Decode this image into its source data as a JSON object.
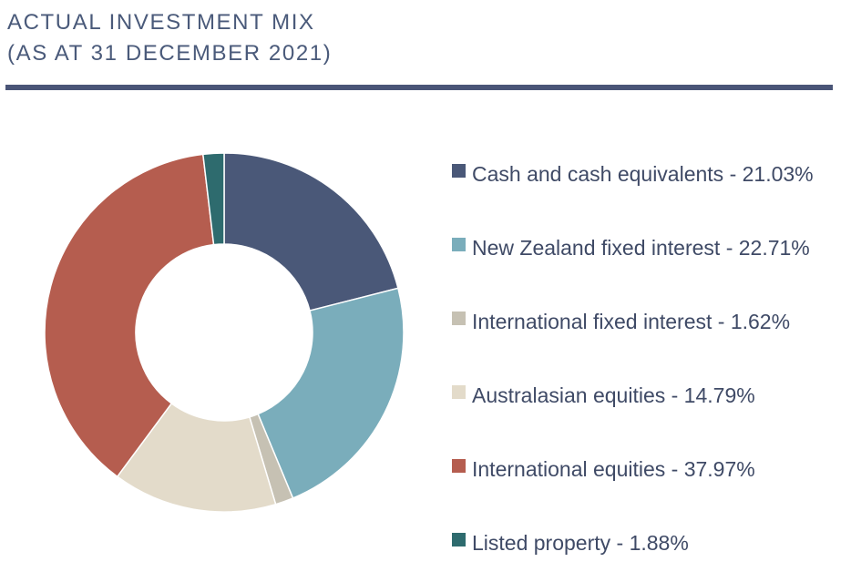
{
  "title": {
    "line1": "ACTUAL INVESTMENT MIX",
    "line2": "(AS AT 31 DECEMBER 2021)"
  },
  "chart_data": {
    "type": "pie",
    "donut": true,
    "legend_position": "right",
    "categories": [
      "Cash and cash equivalents",
      "New Zealand fixed interest",
      "International fixed interest",
      "Australasian equities",
      "International equities",
      "Listed property"
    ],
    "values": [
      21.03,
      22.71,
      1.62,
      14.79,
      37.97,
      1.88
    ],
    "unit": "%",
    "colors": [
      "#4a5878",
      "#7aadbb",
      "#c6c1b3",
      "#e3dbca",
      "#b55d4f",
      "#2e6b6e"
    ],
    "legend_labels": [
      "Cash and cash equivalents - 21.03%",
      "New Zealand fixed interest - 22.71%",
      "International fixed interest - 1.62%",
      "Australasian equities - 14.79%",
      "International equities - 37.97%",
      "Listed property - 1.88%"
    ]
  }
}
